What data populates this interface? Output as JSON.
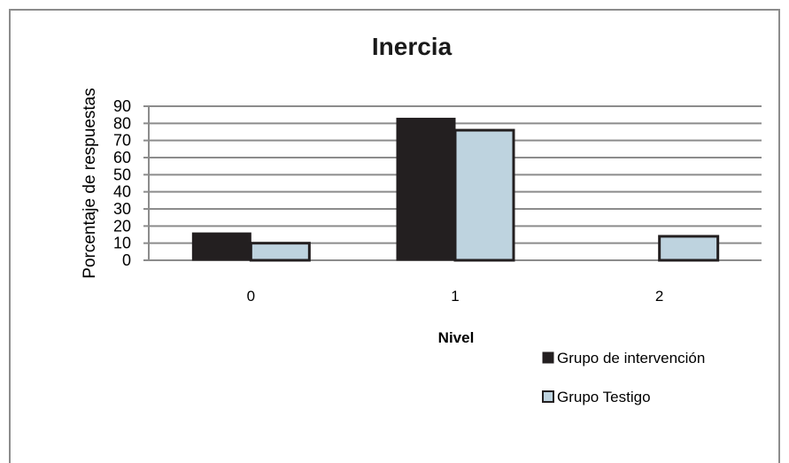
{
  "chart_data": {
    "type": "bar",
    "title": "Inercia",
    "xlabel": "Nivel",
    "ylabel": "Porcentaje de respuestas",
    "categories": [
      "0",
      "1",
      "2"
    ],
    "yticks": [
      "0",
      "10",
      "20",
      "30",
      "40",
      "50",
      "60",
      "70",
      "80",
      "90"
    ],
    "ylim": [
      0,
      90
    ],
    "grid": true,
    "legend_position": "bottom-right",
    "series": [
      {
        "name": "Grupo de intervención",
        "values": [
          16,
          83,
          0
        ],
        "color": "#231f20"
      },
      {
        "name": "Grupo Testigo",
        "values": [
          10,
          76,
          14
        ],
        "color": "#bed3df"
      }
    ]
  }
}
